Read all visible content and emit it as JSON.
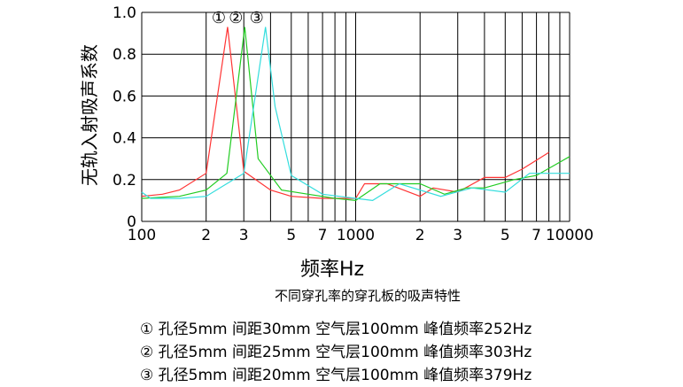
{
  "chart_data": {
    "type": "line",
    "xscale": "log",
    "xlim": [
      100,
      10000
    ],
    "ylim": [
      0,
      1.0
    ],
    "grid": true,
    "xticks": [
      {
        "value": 100,
        "label": "100"
      },
      {
        "value": 200,
        "label": "2"
      },
      {
        "value": 300,
        "label": "3"
      },
      {
        "value": 500,
        "label": "5"
      },
      {
        "value": 700,
        "label": "7"
      },
      {
        "value": 1000,
        "label": "1000"
      },
      {
        "value": 2000,
        "label": "2"
      },
      {
        "value": 3000,
        "label": "3"
      },
      {
        "value": 5000,
        "label": "5"
      },
      {
        "value": 7000,
        "label": "7"
      },
      {
        "value": 10000,
        "label": "10000"
      }
    ],
    "yticks": [
      {
        "value": 0,
        "label": "0"
      },
      {
        "value": 0.2,
        "label": "0.2"
      },
      {
        "value": 0.4,
        "label": "0.4"
      },
      {
        "value": 0.6,
        "label": "0.6"
      },
      {
        "value": 0.8,
        "label": "0.8"
      },
      {
        "value": 1.0,
        "label": "1.0"
      }
    ],
    "ylabel": "无轨入射吸声系数",
    "xlabel": "频率Hz",
    "series": [
      {
        "name": "①",
        "color": "#ff3333",
        "points": [
          [
            100,
            0.12
          ],
          [
            125,
            0.13
          ],
          [
            150,
            0.15
          ],
          [
            200,
            0.23
          ],
          [
            252,
            0.93
          ],
          [
            300,
            0.24
          ],
          [
            400,
            0.15
          ],
          [
            500,
            0.12
          ],
          [
            700,
            0.11
          ],
          [
            1000,
            0.11
          ],
          [
            1100,
            0.18
          ],
          [
            1400,
            0.18
          ],
          [
            2000,
            0.12
          ],
          [
            2300,
            0.16
          ],
          [
            3000,
            0.14
          ],
          [
            4000,
            0.21
          ],
          [
            5000,
            0.21
          ],
          [
            6000,
            0.25
          ],
          [
            8000,
            0.33
          ]
        ]
      },
      {
        "name": "②",
        "color": "#22cc22",
        "points": [
          [
            100,
            0.11
          ],
          [
            150,
            0.12
          ],
          [
            200,
            0.15
          ],
          [
            250,
            0.23
          ],
          [
            303,
            0.93
          ],
          [
            350,
            0.3
          ],
          [
            450,
            0.15
          ],
          [
            600,
            0.13
          ],
          [
            800,
            0.11
          ],
          [
            1000,
            0.1
          ],
          [
            1300,
            0.18
          ],
          [
            2000,
            0.18
          ],
          [
            2600,
            0.13
          ],
          [
            3300,
            0.16
          ],
          [
            4000,
            0.16
          ],
          [
            5500,
            0.2
          ],
          [
            7000,
            0.22
          ],
          [
            10000,
            0.31
          ]
        ]
      },
      {
        "name": "③",
        "color": "#33dddd",
        "points": [
          [
            100,
            0.14
          ],
          [
            110,
            0.11
          ],
          [
            150,
            0.11
          ],
          [
            200,
            0.12
          ],
          [
            300,
            0.23
          ],
          [
            379,
            0.93
          ],
          [
            420,
            0.55
          ],
          [
            500,
            0.22
          ],
          [
            700,
            0.13
          ],
          [
            1000,
            0.11
          ],
          [
            1200,
            0.1
          ],
          [
            1600,
            0.18
          ],
          [
            2500,
            0.12
          ],
          [
            3500,
            0.16
          ],
          [
            5000,
            0.14
          ],
          [
            6500,
            0.23
          ],
          [
            10000,
            0.23
          ]
        ]
      }
    ],
    "annotations": [
      "①",
      "②",
      "③"
    ],
    "caption": "不同穿孔率的穿孔板的吸声特性",
    "legend": [
      "① 孔径5mm 间距30mm 空气层100mm 峰值频率252Hz",
      "② 孔径5mm 间距25mm 空气层100mm 峰值频率303Hz",
      "③ 孔径5mm 间距20mm 空气层100mm 峰值频率379Hz"
    ]
  }
}
